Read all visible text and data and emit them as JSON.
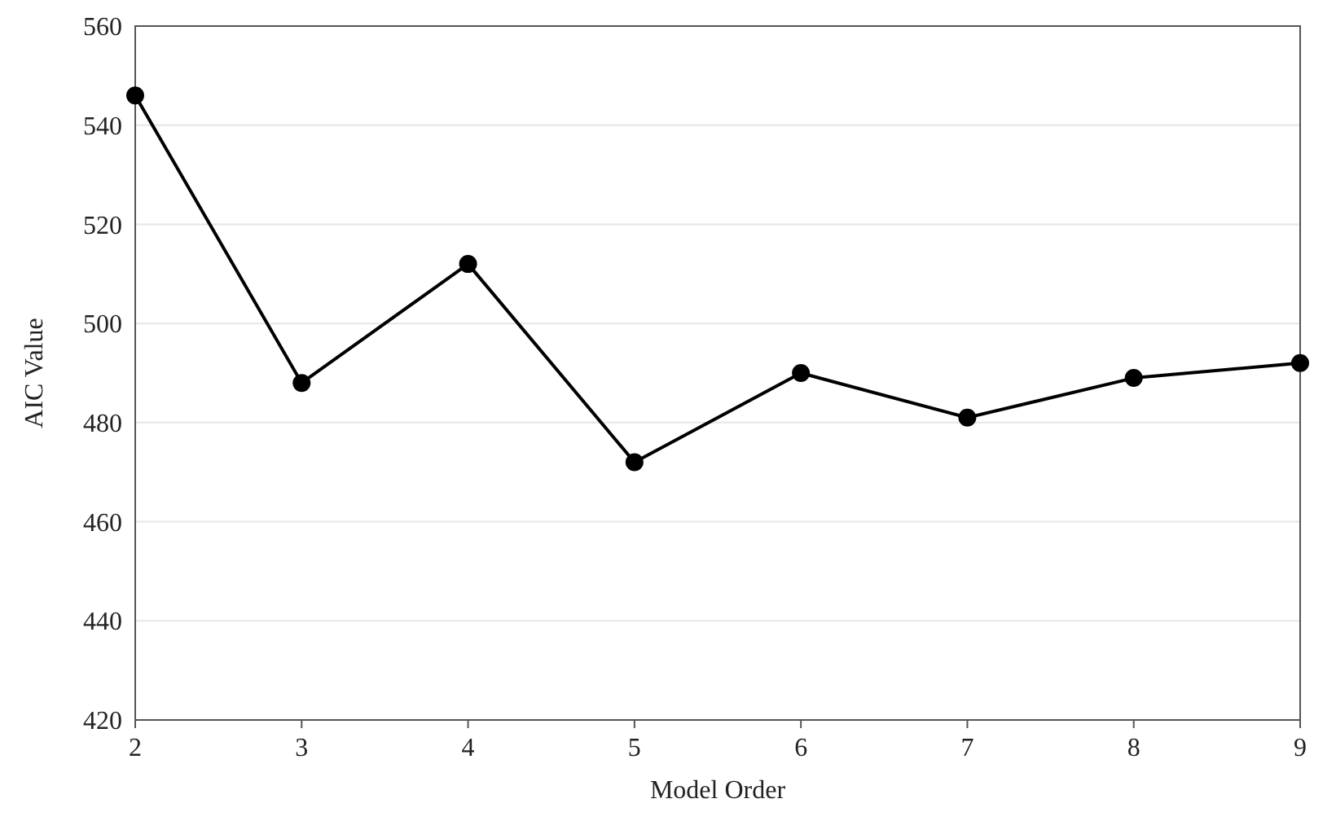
{
  "chart_data": {
    "type": "line",
    "xlabel": "Model Order",
    "ylabel": "AIC Value",
    "x": [
      2,
      3,
      4,
      5,
      6,
      7,
      8,
      9
    ],
    "series": [
      {
        "color": "#000000",
        "values": [
          546,
          488,
          512,
          472,
          490,
          481,
          489,
          492
        ]
      }
    ],
    "xlim": [
      2,
      9
    ],
    "xticks": [
      2,
      3,
      4,
      5,
      6,
      7,
      8,
      9
    ],
    "ylim": [
      420,
      560
    ],
    "yticks": [
      420,
      440,
      460,
      480,
      500,
      520,
      540,
      560
    ],
    "grid": "y",
    "marker": "circle",
    "line_style": "solid"
  }
}
